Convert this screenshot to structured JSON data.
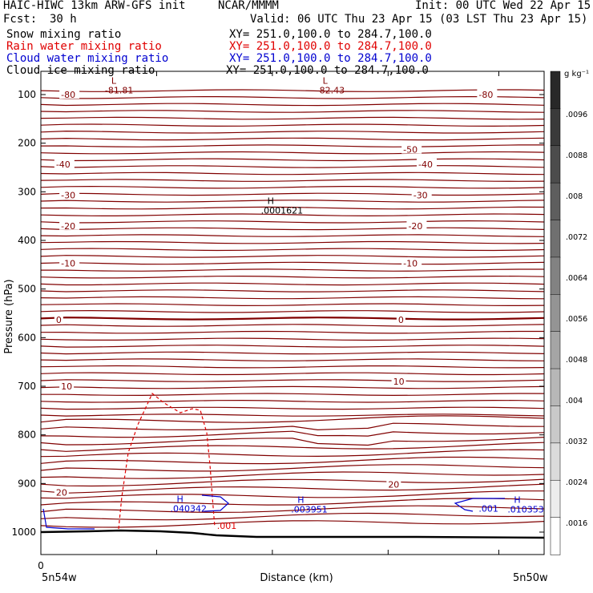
{
  "header": {
    "title_left": "HAIC-HIWC 13km ARW-GFS init",
    "center": "NCAR/MMMM",
    "init": "Init: 00 UTC Wed 22 Apr 15",
    "fcst_label": "Fcst:",
    "fcst_value": "30 h",
    "valid": "Valid: 06 UTC Thu 23 Apr 15 (03 LST Thu 23 Apr 15)",
    "fields": [
      {
        "name": "Snow mixing ratio",
        "xy": "XY= 251.0,100.0 to 284.7,100.0",
        "color": "#000000"
      },
      {
        "name": "Rain water mixing ratio",
        "xy": "XY= 251.0,100.0 to 284.7,100.0",
        "color": "#e00000"
      },
      {
        "name": "Cloud water mixing ratio",
        "xy": "XY= 251.0,100.0 to 284.7,100.0",
        "color": "#0000d0"
      },
      {
        "name": "Cloud ice mixing ratio",
        "xy": "XY= 251.0,100.0 to 284.7,100.0",
        "color": "#000000"
      }
    ]
  },
  "chart_data": {
    "type": "contour",
    "ylabel": "Pressure (hPa)",
    "xlabel": "Distance (km)",
    "x_left_label": "5n54w",
    "x_right_label": "5n50w",
    "x_start_label": "0",
    "ylim": [
      1050,
      50
    ],
    "yticks": [
      "100",
      "200",
      "300",
      "400",
      "500",
      "600",
      "700",
      "800",
      "900",
      "1000"
    ],
    "colorbar": {
      "unit": "g kg⁻¹",
      "labels": [
        ".0096",
        ".0088",
        ".008",
        ".0072",
        ".0064",
        ".0056",
        ".0048",
        ".004",
        ".0032",
        ".0024",
        ".0016"
      ]
    },
    "temperature_labels": [
      {
        "text": "-80",
        "p": 100,
        "x": 0.04
      },
      {
        "text": "-80",
        "p": 100,
        "x": 0.87
      },
      {
        "text": "-50",
        "p": 213,
        "x": 0.72
      },
      {
        "text": "-40",
        "p": 243,
        "x": 0.03
      },
      {
        "text": "-40",
        "p": 243,
        "x": 0.75
      },
      {
        "text": "-30",
        "p": 307,
        "x": 0.04
      },
      {
        "text": "-30",
        "p": 307,
        "x": 0.74
      },
      {
        "text": "-20",
        "p": 370,
        "x": 0.04
      },
      {
        "text": "-20",
        "p": 370,
        "x": 0.73
      },
      {
        "text": "-10",
        "p": 447,
        "x": 0.04
      },
      {
        "text": "-10",
        "p": 447,
        "x": 0.72
      },
      {
        "text": "0",
        "p": 563,
        "x": 0.03
      },
      {
        "text": "0",
        "p": 563,
        "x": 0.71
      },
      {
        "text": "10",
        "p": 700,
        "x": 0.04
      },
      {
        "text": "10",
        "p": 690,
        "x": 0.7
      },
      {
        "text": "20",
        "p": 918,
        "x": 0.03
      },
      {
        "text": "20",
        "p": 902,
        "x": 0.69
      }
    ],
    "extrema_labels": [
      {
        "mark": "L",
        "value": "-81.81",
        "p": 88,
        "x": 0.14,
        "color": "#800000"
      },
      {
        "mark": "L",
        "value": "-82.43",
        "p": 88,
        "x": 0.56,
        "color": "#800000"
      },
      {
        "mark": "H",
        "value": ".0001621",
        "p": 335,
        "x": 0.45,
        "color": "#000000"
      },
      {
        "mark": "H",
        "value": ".040342",
        "p": 948,
        "x": 0.27,
        "color": "#0000d0"
      },
      {
        "mark": "H",
        "value": ".003951",
        "p": 950,
        "x": 0.51,
        "color": "#0000d0"
      },
      {
        "mark": "H",
        "value": ".010353",
        "p": 950,
        "x": 0.94,
        "color": "#0000d0"
      }
    ],
    "contour_value_labels": [
      {
        "text": ".001",
        "p": 993,
        "x": 0.35,
        "color": "#e00000"
      },
      {
        "text": ".001",
        "p": 958,
        "x": 0.87,
        "color": "#0000d0"
      }
    ]
  }
}
